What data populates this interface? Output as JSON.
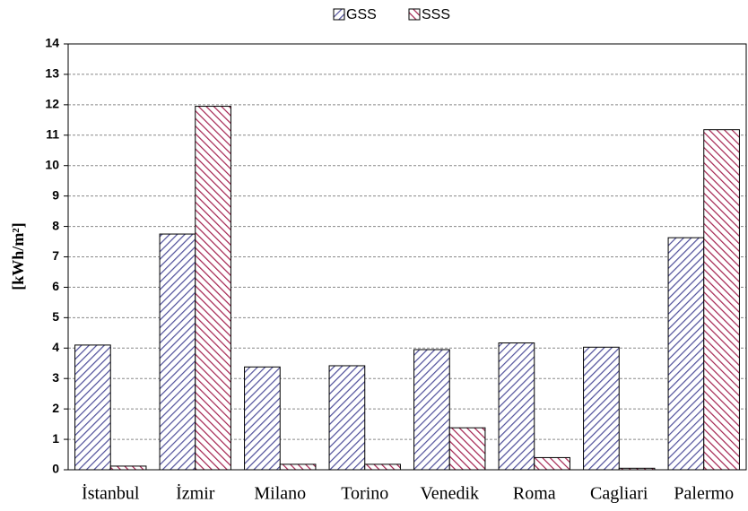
{
  "chart_data": {
    "type": "bar",
    "y_label": "[kWh/m²]",
    "categories": [
      "İstanbul",
      "İzmir",
      "Milano",
      "Torino",
      "Venedik",
      "Roma",
      "Cagliari",
      "Palermo"
    ],
    "series": [
      {
        "name": "GSS",
        "color": "#4f4f9a",
        "values": [
          4.1,
          7.75,
          3.38,
          3.42,
          3.95,
          4.17,
          4.03,
          7.63
        ]
      },
      {
        "name": "SSS",
        "color": "#a3224f",
        "values": [
          0.12,
          11.95,
          0.18,
          0.18,
          1.38,
          0.4,
          0.05,
          11.18
        ]
      }
    ],
    "ylim": [
      0,
      14
    ],
    "yticks": [
      0,
      1,
      2,
      3,
      4,
      5,
      6,
      7,
      8,
      9,
      10,
      11,
      12,
      13,
      14
    ],
    "grid": true
  }
}
